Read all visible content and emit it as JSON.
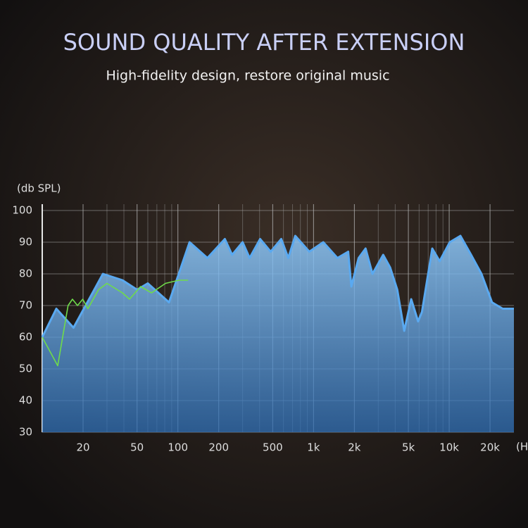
{
  "chart_data": {
    "type": "area",
    "title": "SOUND QUALITY AFTER EXTENSION",
    "subtitle": "High-fidelity design, restore original music",
    "y_label": "(db SPL)",
    "x_label": "(H",
    "log_x": true,
    "grid": true,
    "xlim": [
      10,
      30000
    ],
    "ylim": [
      30,
      102
    ],
    "xticks": [
      20,
      50,
      100,
      200,
      500,
      {
        "value": 1000,
        "label": "1k"
      },
      {
        "value": 2000,
        "label": "2k"
      },
      {
        "value": 5000,
        "label": "5k"
      },
      {
        "value": 10000,
        "label": "10k"
      },
      {
        "value": 20000,
        "label": "20k"
      }
    ],
    "yticks": [
      30,
      40,
      50,
      60,
      70,
      80,
      90,
      100
    ],
    "series": [
      {
        "color": "#5aa9f0",
        "x": [
          10,
          12.7,
          17,
          28,
          39,
          50,
          60,
          86,
          122,
          165,
          222,
          251,
          300,
          338,
          404,
          483,
          578,
          651,
          733,
          931,
          1180,
          1500,
          1800,
          1900,
          2150,
          2420,
          2720,
          3260,
          3670,
          4140,
          4660,
          5250,
          5900,
          6300,
          7500,
          8500,
          10100,
          12100,
          14500,
          17300,
          20700,
          24800,
          30000
        ],
        "values": [
          60,
          69,
          63,
          80,
          78,
          75,
          77,
          71,
          90,
          85,
          91,
          86,
          90,
          85,
          91,
          87,
          91,
          85,
          92,
          87,
          90,
          85,
          87,
          76,
          85,
          88,
          80,
          86,
          82,
          75,
          62,
          72,
          65,
          68,
          88,
          84,
          90,
          92,
          86,
          80,
          71,
          69,
          69
        ]
      },
      {
        "color": "#6fdc4a",
        "x": [
          10,
          13,
          15.5,
          16.7,
          18.2,
          19.9,
          21.7,
          26,
          30,
          39,
          44,
          53,
          64,
          81,
          102,
          119
        ],
        "values": [
          60,
          51,
          70,
          72,
          70,
          72,
          69,
          75,
          77,
          74,
          72,
          76,
          74,
          77,
          78,
          78
        ]
      }
    ]
  }
}
